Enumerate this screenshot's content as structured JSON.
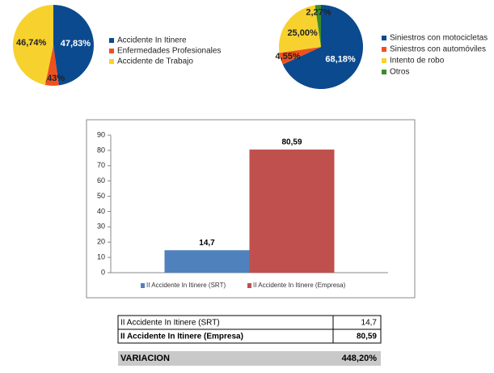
{
  "chart_data": [
    {
      "type": "pie",
      "categories": [
        "Accidente In Itinere",
        "Enfermedades Profesionales",
        "Accidente de Trabajo"
      ],
      "values": [
        47.83,
        5.43,
        46.74
      ],
      "value_labels": [
        "47,83%",
        "5,43%",
        "46,74%"
      ],
      "colors": [
        "#0b4a8e",
        "#f0501e",
        "#f7d12e"
      ]
    },
    {
      "type": "pie",
      "categories": [
        "Siniestros con motocicletas",
        "Siniestros con automóviles",
        "Intento de robo",
        "Otros"
      ],
      "values": [
        68.18,
        4.55,
        25.0,
        2.27
      ],
      "value_labels": [
        "68,18%",
        "4,55%",
        "25,00%",
        "2,27%"
      ],
      "colors": [
        "#0b4a8e",
        "#f0501e",
        "#f7d12e",
        "#3b8d2a"
      ]
    },
    {
      "type": "bar",
      "categories": [
        null
      ],
      "series": [
        {
          "name": "II Accidente In Itinere (SRT)",
          "color": "#4f81bd",
          "values": [
            14.7
          ],
          "value_labels": [
            "14,7"
          ]
        },
        {
          "name": "II Accidente In Itinere (Empresa)",
          "color": "#c0504d",
          "values": [
            80.59
          ],
          "value_labels": [
            "80,59"
          ]
        }
      ],
      "ylim": [
        0,
        90
      ],
      "yticks": [
        0,
        10,
        20,
        30,
        40,
        50,
        60,
        70,
        80,
        90
      ],
      "grid": false
    }
  ],
  "table": {
    "rows": [
      [
        "II Accidente In Itinere (SRT)",
        "14,7"
      ],
      [
        "II Accidente In Itinere (Empresa)",
        "80,59"
      ]
    ],
    "total": [
      "VARIACION",
      "448,20%"
    ]
  }
}
